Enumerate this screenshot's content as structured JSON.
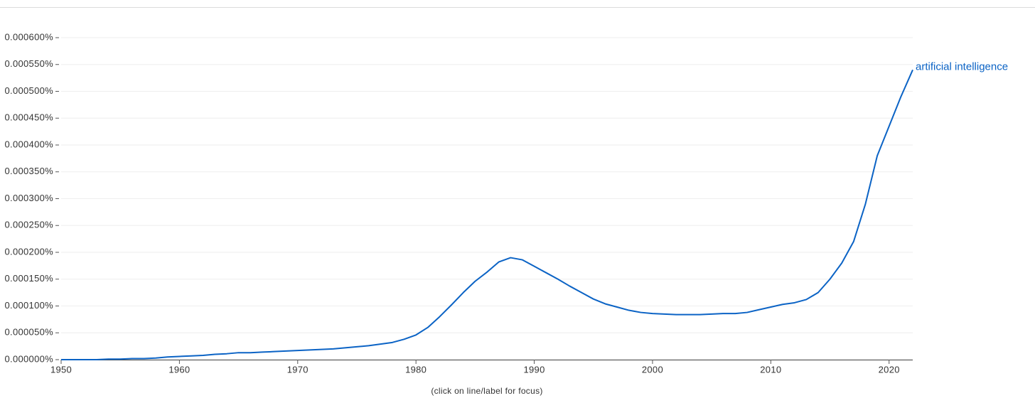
{
  "chart_data": {
    "type": "line",
    "note": "(click on line/label for focus)",
    "x": [
      1950,
      1951,
      1952,
      1953,
      1954,
      1955,
      1956,
      1957,
      1958,
      1959,
      1960,
      1961,
      1962,
      1963,
      1964,
      1965,
      1966,
      1967,
      1968,
      1969,
      1970,
      1971,
      1972,
      1973,
      1974,
      1975,
      1976,
      1977,
      1978,
      1979,
      1980,
      1981,
      1982,
      1983,
      1984,
      1985,
      1986,
      1987,
      1988,
      1989,
      1990,
      1991,
      1992,
      1993,
      1994,
      1995,
      1996,
      1997,
      1998,
      1999,
      2000,
      2001,
      2002,
      2003,
      2004,
      2005,
      2006,
      2007,
      2008,
      2009,
      2010,
      2011,
      2012,
      2013,
      2014,
      2015,
      2016,
      2017,
      2018,
      2019,
      2020,
      2021,
      2022
    ],
    "series": [
      {
        "name": "artificial intelligence",
        "color": "#0b63c5",
        "values": [
          0,
          0,
          0,
          0,
          1e-06,
          1e-06,
          2e-06,
          2e-06,
          3e-06,
          5e-06,
          6e-06,
          7e-06,
          8e-06,
          1e-05,
          1.1e-05,
          1.3e-05,
          1.3e-05,
          1.4e-05,
          1.5e-05,
          1.6e-05,
          1.7e-05,
          1.8e-05,
          1.9e-05,
          2e-05,
          2.2e-05,
          2.4e-05,
          2.6e-05,
          2.9e-05,
          3.2e-05,
          3.8e-05,
          4.6e-05,
          6e-05,
          8e-05,
          0.000102,
          0.000125,
          0.000146,
          0.000163,
          0.000182,
          0.00019,
          0.000186,
          0.000174,
          0.000162,
          0.00015,
          0.000137,
          0.000125,
          0.000113,
          0.000104,
          9.8e-05,
          9.2e-05,
          8.8e-05,
          8.6e-05,
          8.5e-05,
          8.4e-05,
          8.4e-05,
          8.4e-05,
          8.5e-05,
          8.6e-05,
          8.6e-05,
          8.8e-05,
          9.3e-05,
          9.8e-05,
          0.000103,
          0.000106,
          0.000112,
          0.000125,
          0.00015,
          0.00018,
          0.00022,
          0.00029,
          0.00038,
          0.000435,
          0.00049,
          0.00054
        ]
      }
    ],
    "xlim": [
      1950,
      2022
    ],
    "ylim": [
      0,
      0.0006
    ],
    "xticks": [
      1950,
      1960,
      1970,
      1980,
      1990,
      2000,
      2010,
      2020
    ],
    "yticks": [
      {
        "value": 0,
        "label": "0.000000%"
      },
      {
        "value": 5e-05,
        "label": "0.000050%"
      },
      {
        "value": 0.0001,
        "label": "0.000100%"
      },
      {
        "value": 0.00015,
        "label": "0.000150%"
      },
      {
        "value": 0.0002,
        "label": "0.000200%"
      },
      {
        "value": 0.00025,
        "label": "0.000250%"
      },
      {
        "value": 0.0003,
        "label": "0.000300%"
      },
      {
        "value": 0.00035,
        "label": "0.000350%"
      },
      {
        "value": 0.0004,
        "label": "0.000400%"
      },
      {
        "value": 0.00045,
        "label": "0.000450%"
      },
      {
        "value": 0.0005,
        "label": "0.000500%"
      },
      {
        "value": 0.00055,
        "label": "0.000550%"
      },
      {
        "value": 0.0006,
        "label": "0.000600%"
      }
    ],
    "grid": true
  }
}
